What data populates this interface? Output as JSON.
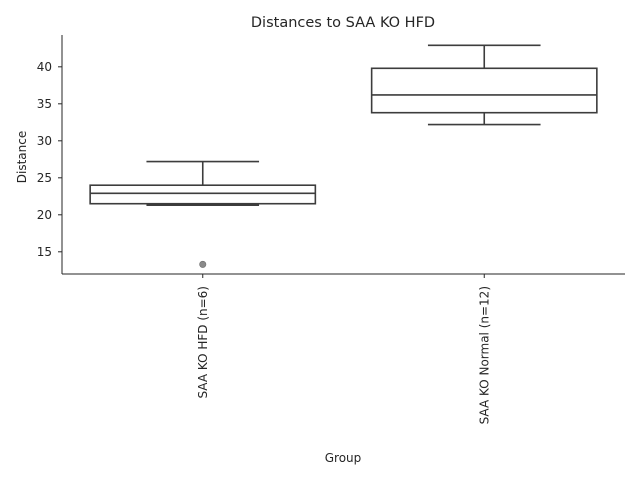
{
  "chart_data": {
    "type": "box",
    "title": "Distances to SAA KO HFD",
    "xlabel": "Group",
    "ylabel": "Distance",
    "ylim": [
      12,
      44.3
    ],
    "yticks": [
      15,
      20,
      25,
      30,
      35,
      40
    ],
    "grid": false,
    "categories": [
      "SAA KO HFD (n=6)",
      "SAA KO Normal (n=12)"
    ],
    "boxes": [
      {
        "whisker_low": 21.3,
        "q1": 21.5,
        "median": 22.9,
        "q3": 24.0,
        "whisker_high": 27.2,
        "outliers": [
          13.3
        ]
      },
      {
        "whisker_low": 32.2,
        "q1": 33.8,
        "median": 36.2,
        "q3": 39.8,
        "whisker_high": 42.9,
        "outliers": []
      }
    ],
    "colors": {
      "box_edge": "#3d3d3d",
      "box_fill": "#ffffff",
      "outlier": "#8a8a8a",
      "text": "#262626"
    }
  }
}
